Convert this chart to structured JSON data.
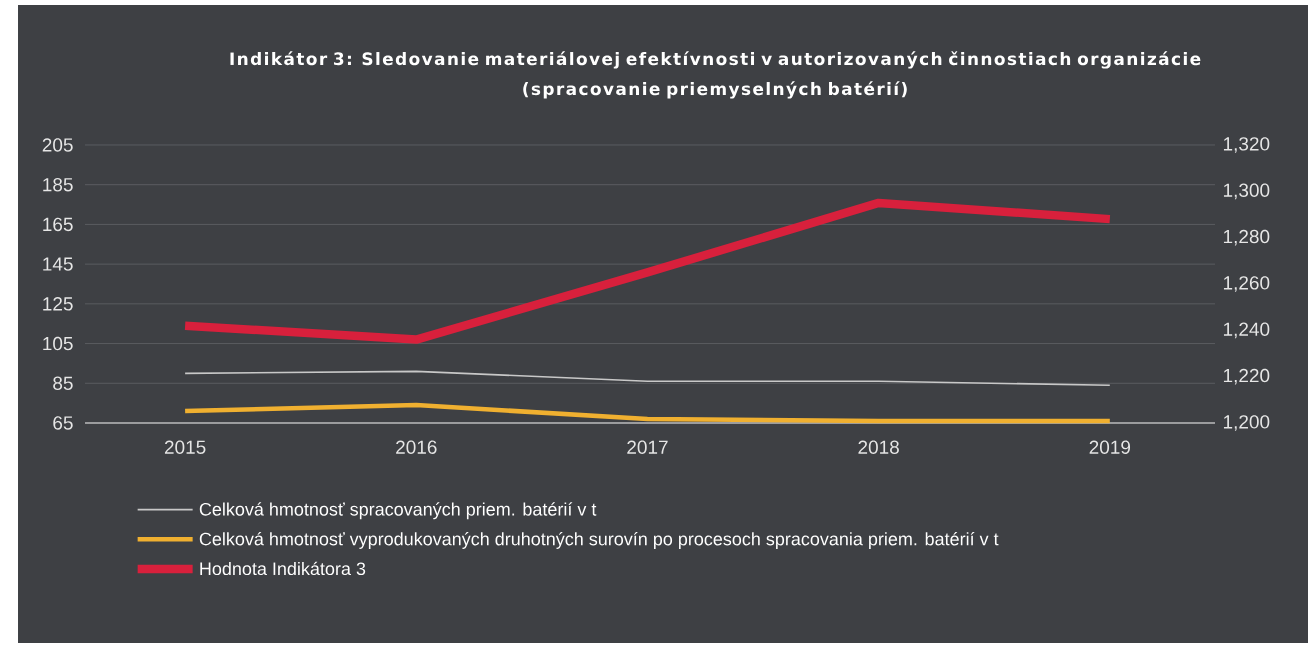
{
  "chart_data": {
    "type": "line",
    "title": "Indikátor 3: Sledovanie materiálovej efektívnosti v autorizovaných činnostiach organizácie (spracovanie priemyselných batérií)",
    "categories": [
      "2015",
      "2016",
      "2017",
      "2018",
      "2019"
    ],
    "series": [
      {
        "name": "Celková hmotnosť spracovaných priem. batérií v t",
        "color": "#c8c8c8",
        "values": [
          90,
          91,
          86,
          86,
          84
        ]
      },
      {
        "name": "Celková hmotnosť vyprodukovaných druhotných surovín po procesoch spracovania priem. batérií v t",
        "color": "#f0b030",
        "values": [
          71,
          74,
          67,
          66,
          66
        ]
      },
      {
        "name": "Hodnota Indikátora 3",
        "color": "#d8203c",
        "axis": "y2",
        "values": [
          1242,
          1236,
          1265,
          1295,
          1288
        ]
      }
    ],
    "ylim": [
      65,
      205
    ],
    "yticks": [
      65,
      85,
      105,
      125,
      145,
      165,
      185,
      205
    ],
    "y2lim": [
      1200,
      1320
    ],
    "y2ticks": [
      {
        "value": 1200,
        "label": "1,200"
      },
      {
        "value": 1220,
        "label": "1,220"
      },
      {
        "value": 1240,
        "label": "1,240"
      },
      {
        "value": 1260,
        "label": "1,260"
      },
      {
        "value": 1280,
        "label": "1,280"
      },
      {
        "value": 1300,
        "label": "1,300"
      },
      {
        "value": 1320,
        "label": "1,320"
      }
    ],
    "grid": "y",
    "legend": "bottom"
  }
}
